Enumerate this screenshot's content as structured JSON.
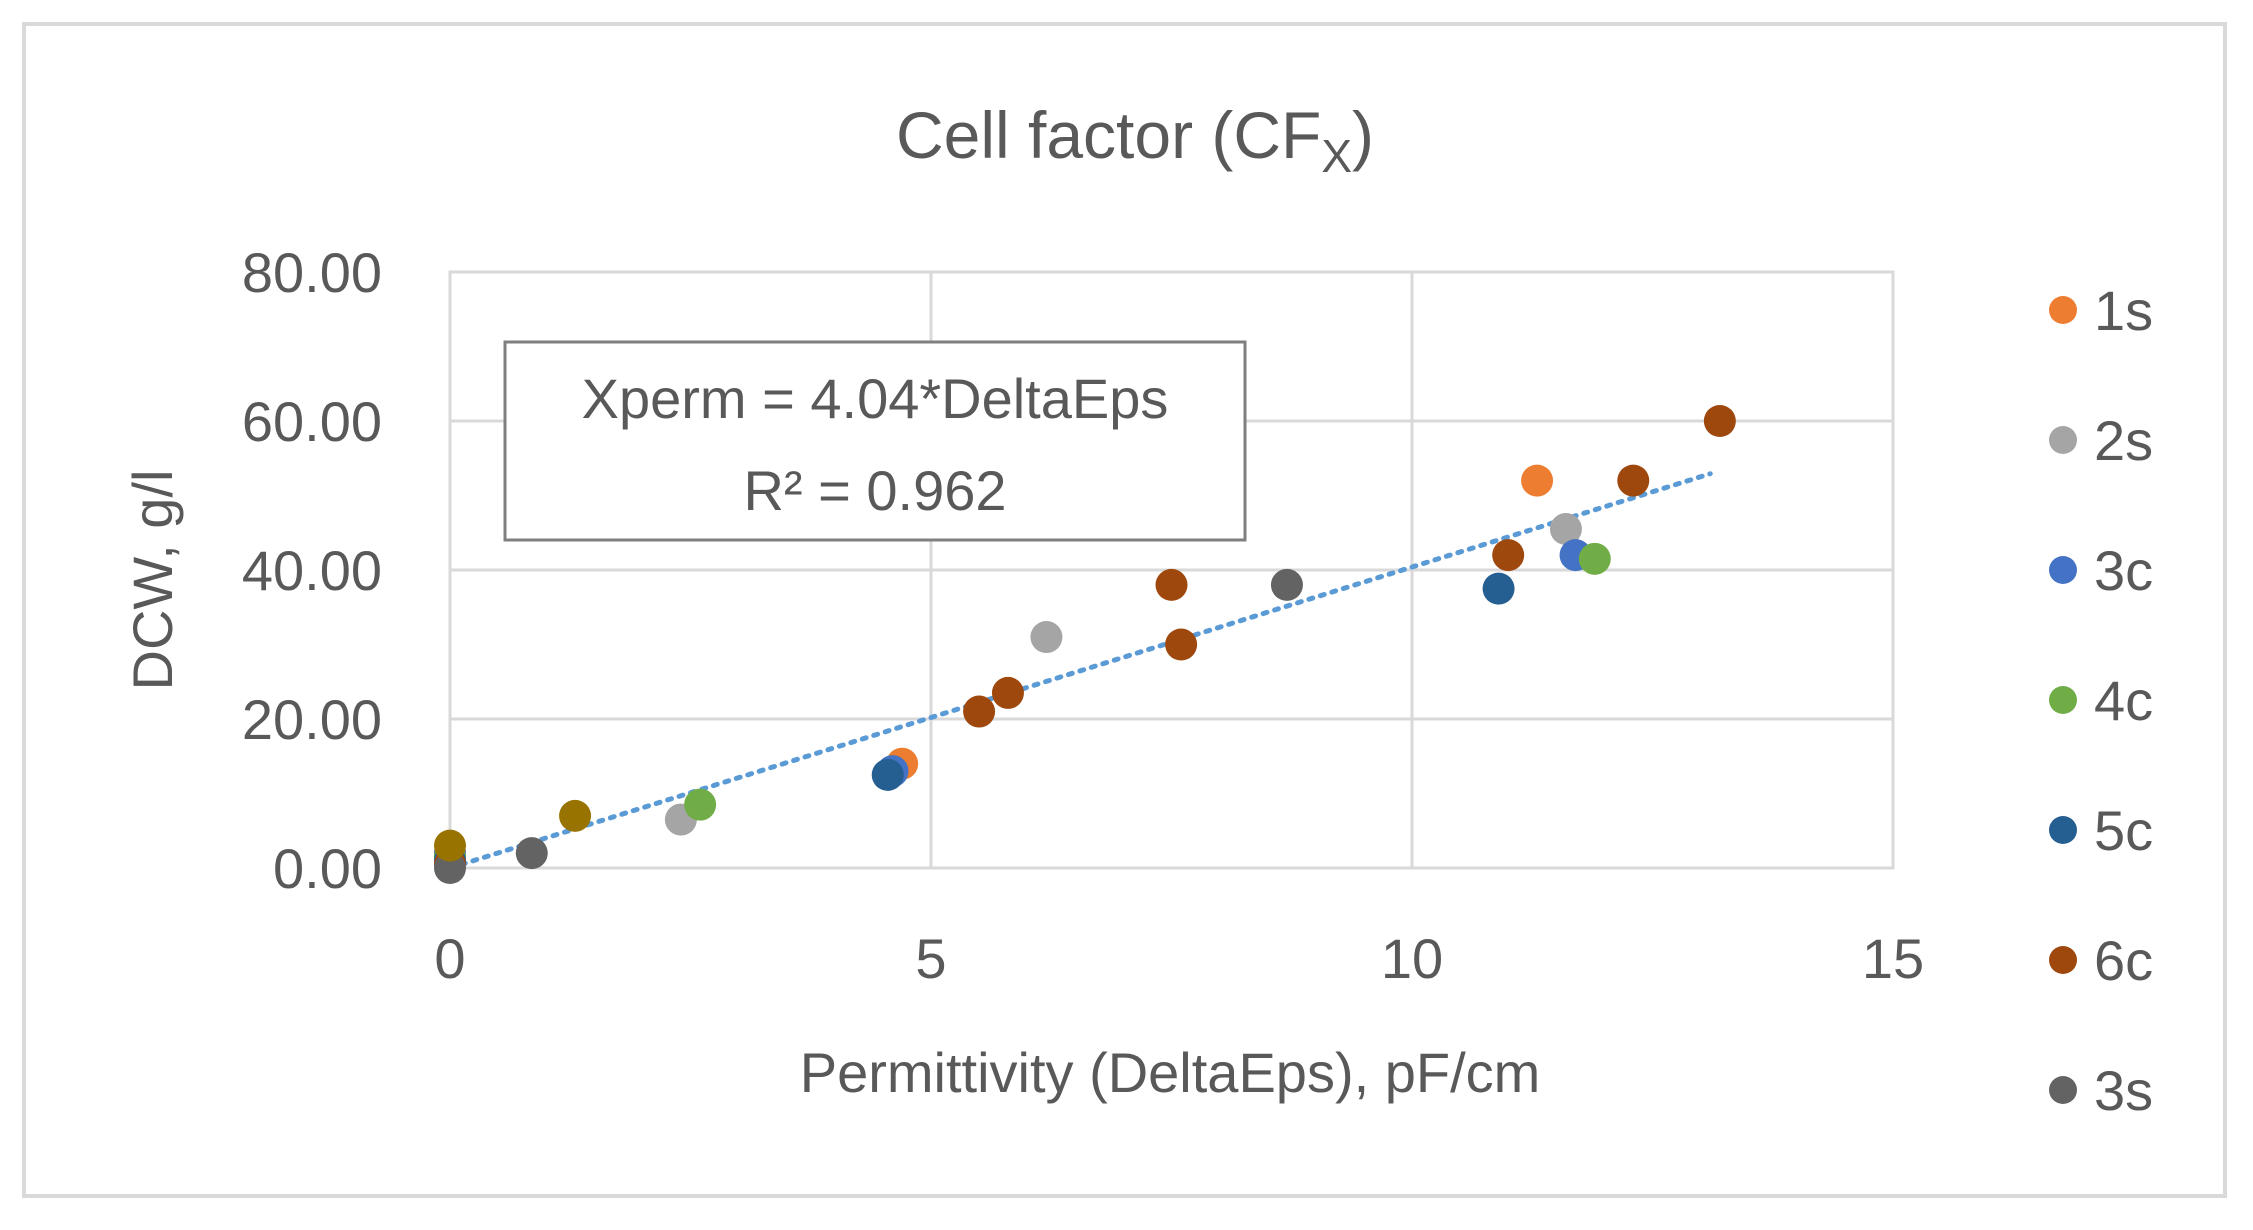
{
  "chart_data": {
    "type": "scatter",
    "title": "Cell factor (CF",
    "title_subscript": "X",
    "title_close": ")",
    "xlabel": "Permittivity (DeltaEps), pF/cm",
    "ylabel": "DCW, g/l",
    "xlim": [
      0,
      15
    ],
    "ylim": [
      0,
      80
    ],
    "x_ticks": [
      0,
      5,
      10,
      15
    ],
    "x_tick_labels": [
      "0",
      "5",
      "10",
      "15"
    ],
    "y_ticks": [
      0,
      20,
      40,
      60,
      80
    ],
    "y_tick_labels": [
      "0.00",
      "20.00",
      "40.00",
      "60.00",
      "80.00"
    ],
    "grid": true,
    "legend_position": "right",
    "annotation": {
      "line1": "Xperm = 4.04*DeltaEps",
      "line2": "R² = 0.962"
    },
    "trendline": {
      "type": "linear",
      "slope": 4.04,
      "intercept": 0,
      "x_range": [
        0,
        13.1
      ],
      "color": "#5b9bd5"
    },
    "series": [
      {
        "name": "1s",
        "color": "#ed7d31",
        "points": [
          [
            0,
            2
          ],
          [
            4.7,
            14
          ],
          [
            11.3,
            52
          ]
        ]
      },
      {
        "name": "2s",
        "color": "#a5a5a5",
        "points": [
          [
            0,
            1
          ],
          [
            2.4,
            6.5
          ],
          [
            6.2,
            31
          ],
          [
            11.6,
            45.5
          ]
        ]
      },
      {
        "name": "3c",
        "color": "#4472c4",
        "points": [
          [
            0,
            2
          ],
          [
            4.6,
            13
          ],
          [
            11.7,
            42
          ]
        ]
      },
      {
        "name": "4c",
        "color": "#70ad47",
        "points": [
          [
            0,
            1.5
          ],
          [
            2.6,
            8.5
          ],
          [
            11.9,
            41.5
          ]
        ]
      },
      {
        "name": "5c",
        "color": "#255e91",
        "points": [
          [
            0,
            1
          ],
          [
            4.55,
            12.5
          ],
          [
            10.9,
            37.5
          ]
        ]
      },
      {
        "name": "6c",
        "color": "#9e480e",
        "points": [
          [
            0,
            0.5
          ],
          [
            5.5,
            21
          ],
          [
            5.8,
            23.5
          ],
          [
            7.5,
            38
          ],
          [
            7.6,
            30
          ],
          [
            11.0,
            42
          ],
          [
            12.3,
            52
          ],
          [
            13.2,
            60
          ]
        ]
      },
      {
        "name": "3s",
        "color": "#636363",
        "points": [
          [
            0,
            0
          ],
          [
            0.85,
            2
          ],
          [
            8.7,
            38
          ]
        ]
      },
      {
        "name": "",
        "color": "#997300",
        "points": [
          [
            0,
            3
          ],
          [
            1.3,
            7
          ]
        ]
      }
    ]
  }
}
